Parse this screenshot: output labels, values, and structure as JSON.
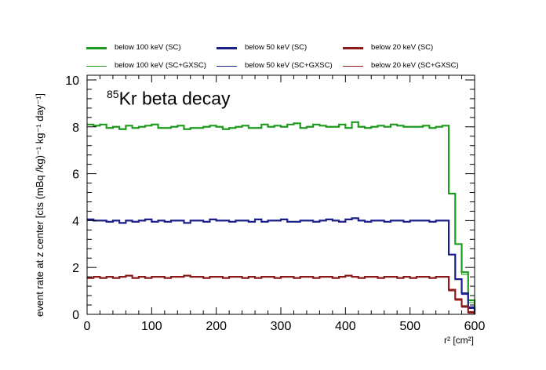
{
  "chart_data": {
    "type": "line",
    "title": "85Kr beta decay",
    "title_superscript": "85",
    "title_main": "Kr beta decay",
    "xlabel": "r² [cm²]",
    "ylabel": "event rate at z center [cts (mBq /kg)⁻¹ kg⁻¹ day⁻¹]",
    "xlim": [
      0,
      600
    ],
    "ylim": [
      0,
      10.2
    ],
    "x_ticks": [
      0,
      100,
      200,
      300,
      400,
      500,
      600
    ],
    "y_ticks": [
      0,
      2,
      4,
      6,
      8,
      10
    ],
    "grid": false,
    "legend_position": "top",
    "bin_width": 10,
    "colors": {
      "green": "#1f9a1f",
      "blue": "#1b1f8a",
      "red": "#8b1a1a"
    },
    "series": [
      {
        "name": "below 100 keV (SC)",
        "color": "#1f9a1f",
        "style": "thick",
        "values": [
          8.1,
          8.05,
          8.1,
          7.95,
          8.0,
          7.9,
          8.05,
          7.95,
          8.0,
          8.05,
          8.1,
          7.95,
          7.95,
          8.0,
          8.05,
          7.9,
          7.95,
          7.95,
          8.0,
          8.05,
          8.0,
          7.9,
          7.95,
          8.0,
          8.05,
          7.95,
          7.95,
          8.1,
          8.0,
          8.05,
          8.0,
          8.1,
          8.15,
          7.95,
          8.0,
          8.1,
          8.05,
          8.0,
          8.0,
          8.1,
          7.95,
          8.2,
          8.0,
          7.95,
          8.0,
          8.05,
          8.0,
          8.1,
          8.05,
          8.0,
          8.0,
          8.0,
          8.05,
          7.95,
          8.0,
          8.05,
          5.15,
          3.0,
          1.8,
          0.6
        ]
      },
      {
        "name": "below 100 keV (SC+GXSC)",
        "color": "#1f9a1f",
        "style": "thin",
        "values": [
          8.1,
          8.05,
          8.1,
          7.95,
          8.0,
          7.9,
          8.05,
          7.95,
          8.0,
          8.05,
          8.1,
          7.95,
          7.95,
          8.0,
          8.05,
          7.9,
          7.95,
          7.95,
          8.0,
          8.05,
          8.0,
          7.9,
          7.95,
          8.0,
          8.05,
          7.95,
          7.95,
          8.1,
          8.0,
          8.05,
          8.0,
          8.1,
          8.15,
          7.95,
          8.0,
          8.1,
          8.05,
          8.0,
          8.0,
          8.1,
          7.95,
          8.2,
          8.0,
          7.95,
          8.0,
          8.05,
          8.0,
          8.1,
          8.05,
          8.0,
          8.0,
          8.0,
          8.05,
          7.95,
          8.0,
          8.05,
          5.15,
          3.0,
          1.7,
          0.5
        ]
      },
      {
        "name": "below 50 keV (SC)",
        "color": "#1b1f8a",
        "style": "thick",
        "values": [
          4.05,
          4.0,
          4.0,
          3.95,
          4.0,
          3.9,
          4.0,
          3.95,
          4.0,
          4.05,
          3.95,
          4.0,
          3.95,
          4.0,
          4.0,
          3.9,
          4.0,
          4.0,
          3.95,
          4.05,
          4.0,
          4.0,
          3.95,
          4.0,
          4.0,
          3.95,
          4.05,
          3.95,
          4.0,
          4.0,
          4.05,
          3.95,
          3.95,
          4.0,
          4.0,
          3.95,
          4.0,
          4.05,
          4.0,
          3.95,
          4.05,
          4.1,
          4.0,
          3.95,
          4.0,
          4.0,
          3.95,
          4.0,
          4.0,
          3.95,
          4.0,
          4.0,
          4.0,
          3.95,
          4.0,
          4.0,
          2.55,
          1.5,
          0.9,
          0.3
        ]
      },
      {
        "name": "below 50 keV (SC+GXSC)",
        "color": "#1b1f8a",
        "style": "thin",
        "values": [
          4.05,
          4.0,
          4.0,
          3.95,
          4.0,
          3.9,
          4.0,
          3.95,
          4.0,
          4.05,
          3.95,
          4.0,
          3.95,
          4.0,
          4.0,
          3.9,
          4.0,
          4.0,
          3.95,
          4.05,
          4.0,
          4.0,
          3.95,
          4.0,
          4.0,
          3.95,
          4.05,
          3.95,
          4.0,
          4.0,
          4.05,
          3.95,
          3.95,
          4.0,
          4.0,
          3.95,
          4.0,
          4.05,
          4.0,
          3.95,
          4.05,
          4.1,
          4.0,
          3.95,
          4.0,
          4.0,
          3.95,
          4.0,
          4.0,
          3.95,
          4.0,
          4.0,
          4.0,
          3.95,
          4.0,
          4.0,
          2.55,
          1.5,
          0.85,
          0.25
        ]
      },
      {
        "name": "below 20 keV (SC)",
        "color": "#8b1a1a",
        "style": "thick",
        "values": [
          1.55,
          1.6,
          1.55,
          1.6,
          1.55,
          1.6,
          1.65,
          1.55,
          1.6,
          1.55,
          1.6,
          1.6,
          1.55,
          1.6,
          1.6,
          1.65,
          1.6,
          1.6,
          1.55,
          1.6,
          1.6,
          1.55,
          1.6,
          1.6,
          1.55,
          1.6,
          1.55,
          1.6,
          1.6,
          1.55,
          1.6,
          1.6,
          1.55,
          1.6,
          1.6,
          1.55,
          1.6,
          1.6,
          1.55,
          1.6,
          1.65,
          1.6,
          1.55,
          1.6,
          1.6,
          1.55,
          1.6,
          1.6,
          1.55,
          1.6,
          1.55,
          1.6,
          1.6,
          1.55,
          1.6,
          1.6,
          1.05,
          0.65,
          0.35,
          0.1
        ]
      },
      {
        "name": "below 20 keV (SC+GXSC)",
        "color": "#8b1a1a",
        "style": "thin",
        "values": [
          1.55,
          1.6,
          1.55,
          1.6,
          1.55,
          1.6,
          1.65,
          1.55,
          1.6,
          1.55,
          1.6,
          1.6,
          1.55,
          1.6,
          1.6,
          1.65,
          1.6,
          1.6,
          1.55,
          1.6,
          1.6,
          1.55,
          1.6,
          1.6,
          1.55,
          1.6,
          1.55,
          1.6,
          1.6,
          1.55,
          1.6,
          1.6,
          1.55,
          1.6,
          1.6,
          1.55,
          1.6,
          1.6,
          1.55,
          1.6,
          1.65,
          1.6,
          1.55,
          1.6,
          1.6,
          1.55,
          1.6,
          1.6,
          1.55,
          1.6,
          1.55,
          1.6,
          1.6,
          1.55,
          1.6,
          1.6,
          1.0,
          0.6,
          0.3,
          0.05
        ]
      }
    ]
  }
}
